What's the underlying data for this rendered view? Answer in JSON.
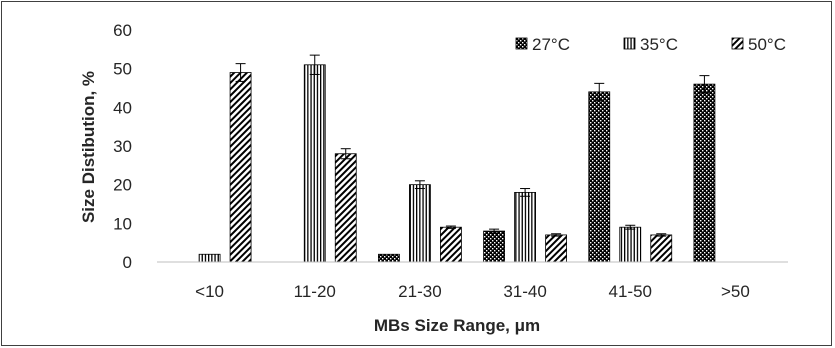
{
  "chart_data": {
    "type": "bar",
    "title": "",
    "xlabel": "MBs Size Range, μm",
    "ylabel": "Size Distibution, %",
    "ylim": [
      0,
      60
    ],
    "yticks": [
      0,
      10,
      20,
      30,
      40,
      50,
      60
    ],
    "grid": false,
    "legend_position": "top-right",
    "error_bars": true,
    "categories": [
      "<10",
      "11-20",
      "21-30",
      "31-40",
      "41-50",
      ">50"
    ],
    "series": [
      {
        "name": "27°C",
        "pattern": "dots",
        "color": "#000000",
        "values": [
          0,
          0,
          2,
          8,
          44,
          46
        ],
        "errors": [
          0,
          0,
          0,
          0.5,
          2.2,
          2.2
        ]
      },
      {
        "name": "35°C",
        "pattern": "vertical",
        "color": "#000000",
        "values": [
          2,
          51,
          20,
          18,
          9,
          0
        ],
        "errors": [
          0,
          2.5,
          1,
          1,
          0.5,
          0
        ]
      },
      {
        "name": "50°C",
        "pattern": "diagonal",
        "color": "#000000",
        "values": [
          49,
          28,
          9,
          7,
          7,
          0
        ],
        "errors": [
          2.3,
          1.3,
          0.3,
          0.3,
          0.3,
          0
        ]
      }
    ]
  }
}
